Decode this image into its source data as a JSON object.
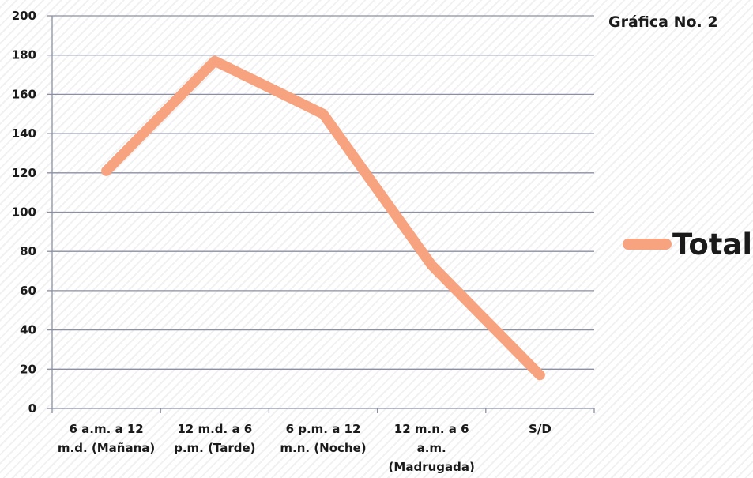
{
  "chart_data": {
    "type": "line",
    "title": "Gráfica No. 2",
    "categories": [
      [
        "6 a.m. a 12",
        "m.d. (Mañana)"
      ],
      [
        "12 m.d. a 6",
        "p.m. (Tarde)"
      ],
      [
        "6 p.m. a 12",
        "m.n. (Noche)"
      ],
      [
        "12 m.n. a 6",
        "a.m.",
        "(Madrugada)"
      ],
      [
        "S/D"
      ]
    ],
    "series": [
      {
        "name": "Total",
        "values": [
          121,
          177,
          150,
          73,
          17
        ],
        "color": "#f7a37f"
      }
    ],
    "yticks": [
      "0",
      "20",
      "40",
      "60",
      "80",
      "100",
      "120",
      "140",
      "160",
      "180",
      "200"
    ],
    "ylim": [
      0,
      200
    ],
    "grid": true,
    "legend": "right",
    "colors": {
      "gridline": "#8a8fa3",
      "axis": "#8a8fa3",
      "text": "#1a1a1a"
    }
  }
}
